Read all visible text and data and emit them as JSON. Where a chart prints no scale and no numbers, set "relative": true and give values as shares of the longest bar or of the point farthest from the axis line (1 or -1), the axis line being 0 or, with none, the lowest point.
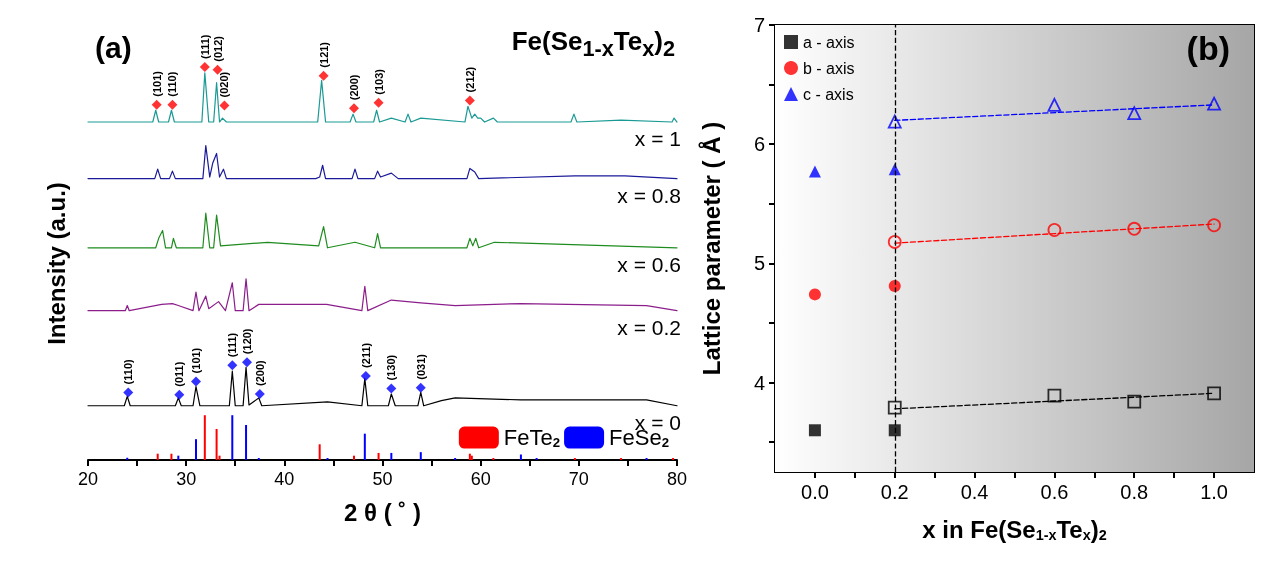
{
  "chart_data": [
    {
      "type": "line",
      "relative": true,
      "xlabel": "2 θ ( ˚ )",
      "ylabel": "Intensity (a.u.)",
      "xlim": [
        20,
        80
      ],
      "xticks": [
        20,
        {
          "value": 25,
          "label": null
        },
        30,
        {
          "value": 35,
          "label": null
        },
        40,
        {
          "value": 45,
          "label": null
        },
        50,
        {
          "value": 55,
          "label": null
        },
        60,
        {
          "value": 65,
          "label": null
        },
        70,
        {
          "value": 75,
          "label": null
        },
        80
      ],
      "legend": "bottom right",
      "line_style": "solid",
      "marker": "none",
      "annotations": [
        "(a)",
        "Fe(Se$_{1-x}$Te$_{x}$)$_{2}$",
        {
          "text": "(101)",
          "x": 27.0,
          "y": 0.904
        },
        {
          "text": "(110)",
          "x": 28.6,
          "y": 0.904
        },
        {
          "text": "(111)",
          "x": 31.9,
          "y": 1.0
        },
        {
          "text": "(012)",
          "x": 33.2,
          "y": 0.993
        },
        {
          "text": "(020)",
          "x": 33.9,
          "y": 0.902
        },
        {
          "text": "(121)",
          "x": 44.0,
          "y": 0.978
        },
        {
          "text": "(200)",
          "x": 47.1,
          "y": 0.895
        },
        {
          "text": "(103)",
          "x": 49.6,
          "y": 0.909
        },
        {
          "text": "(212)",
          "x": 58.9,
          "y": 0.915
        },
        {
          "text": "(110)",
          "x": 24.1,
          "y": 0.172
        },
        {
          "text": "(011)",
          "x": 29.3,
          "y": 0.166
        },
        {
          "text": "(101)",
          "x": 31.0,
          "y": 0.2
        },
        {
          "text": "(111)",
          "x": 34.7,
          "y": 0.241
        },
        {
          "text": "(120)",
          "x": 36.2,
          "y": 0.249
        },
        {
          "text": "(200)",
          "x": 37.5,
          "y": 0.168
        },
        {
          "text": "(211)",
          "x": 48.3,
          "y": 0.214
        },
        {
          "text": "(130)",
          "x": 50.9,
          "y": 0.182
        },
        {
          "text": "(031)",
          "x": 53.9,
          "y": 0.184
        }
      ],
      "series": [
        {
          "name": "x = 1",
          "color": "#1a9a94",
          "x": [
            20,
            26.6,
            26.9,
            27.2,
            28.2,
            28.5,
            28.8,
            31.6,
            31.9,
            32.3,
            32.8,
            33.1,
            33.4,
            33.7,
            34.1,
            43.4,
            43.8,
            44.2,
            46.7,
            47.0,
            47.3,
            49.1,
            49.4,
            49.7,
            50.9,
            52.3,
            52.6,
            52.9,
            53.9,
            58.4,
            58.7,
            59.1,
            59.4,
            59.7,
            60.0,
            60.4,
            61.3,
            61.7,
            69.2,
            69.5,
            69.8,
            74.3,
            79.5,
            79.7,
            80
          ],
          "values": [
            0.86,
            0.86,
            0.89,
            0.86,
            0.86,
            0.89,
            0.86,
            0.86,
            0.985,
            0.86,
            0.86,
            0.96,
            0.86,
            0.87,
            0.86,
            0.86,
            0.966,
            0.86,
            0.86,
            0.88,
            0.86,
            0.86,
            0.89,
            0.86,
            0.87,
            0.86,
            0.88,
            0.86,
            0.87,
            0.86,
            0.9,
            0.87,
            0.88,
            0.87,
            0.87,
            0.86,
            0.87,
            0.86,
            0.86,
            0.88,
            0.86,
            0.865,
            0.86,
            0.87,
            0.86
          ]
        },
        {
          "name": "x = 0.8",
          "color": "#1a1a9a",
          "x": [
            20,
            26.8,
            27.1,
            27.4,
            28.3,
            28.6,
            28.9,
            31.7,
            32.0,
            32.4,
            32.7,
            33.1,
            33.4,
            33.8,
            34.1,
            43.2,
            43.6,
            43.9,
            44.2,
            46.9,
            47.2,
            47.5,
            49.2,
            49.5,
            49.8,
            50.9,
            51.6,
            58.6,
            58.9,
            59.4,
            59.8,
            69.6,
            74.7,
            80
          ],
          "values": [
            0.716,
            0.716,
            0.74,
            0.716,
            0.716,
            0.735,
            0.716,
            0.716,
            0.8,
            0.72,
            0.755,
            0.78,
            0.72,
            0.74,
            0.716,
            0.716,
            0.72,
            0.75,
            0.716,
            0.716,
            0.74,
            0.716,
            0.716,
            0.735,
            0.72,
            0.73,
            0.716,
            0.716,
            0.742,
            0.733,
            0.716,
            0.723,
            0.723,
            0.716
          ]
        },
        {
          "name": "x = 0.6",
          "color": "#1e8c1e",
          "x": [
            20,
            26.9,
            27.2,
            27.6,
            27.9,
            28.5,
            28.7,
            29.0,
            31.7,
            32.0,
            32.4,
            32.8,
            33.1,
            33.5,
            38.3,
            43.5,
            44.0,
            44.4,
            47.2,
            49.2,
            49.5,
            49.8,
            58.6,
            58.9,
            59.2,
            59.5,
            59.8,
            61.4,
            80
          ],
          "values": [
            0.54,
            0.54,
            0.564,
            0.584,
            0.54,
            0.54,
            0.564,
            0.54,
            0.54,
            0.628,
            0.54,
            0.54,
            0.623,
            0.545,
            0.554,
            0.545,
            0.594,
            0.54,
            0.554,
            0.54,
            0.576,
            0.54,
            0.54,
            0.564,
            0.545,
            0.564,
            0.54,
            0.554,
            0.54
          ]
        },
        {
          "name": "x = 0.2",
          "color": "#8c1e8c",
          "x": [
            20,
            23.8,
            24.0,
            24.2,
            27.5,
            28.6,
            29.2,
            30.7,
            31.0,
            31.3,
            32.0,
            32.3,
            33.3,
            34.0,
            34.7,
            35.0,
            35.8,
            36.1,
            36.4,
            37.4,
            44.3,
            47.9,
            48.2,
            48.5,
            50.9,
            53.9,
            57.4,
            64.1,
            76.9,
            80
          ],
          "values": [
            0.38,
            0.38,
            0.393,
            0.38,
            0.396,
            0.398,
            0.393,
            0.38,
            0.427,
            0.38,
            0.417,
            0.385,
            0.403,
            0.38,
            0.451,
            0.38,
            0.38,
            0.461,
            0.38,
            0.396,
            0.396,
            0.38,
            0.442,
            0.38,
            0.407,
            0.4,
            0.393,
            0.398,
            0.393,
            0.38
          ]
        },
        {
          "name": "x = 0",
          "color": "#000000",
          "x": [
            20,
            23.7,
            24.0,
            24.3,
            28.9,
            29.2,
            29.5,
            30.7,
            31.0,
            31.4,
            34.4,
            34.7,
            35.0,
            35.8,
            36.1,
            36.4,
            37.4,
            37.7,
            44.4,
            47.9,
            48.2,
            48.5,
            50.6,
            50.9,
            51.3,
            53.6,
            53.9,
            54.2,
            56.0,
            57.4,
            64.1,
            76.9,
            80
          ],
          "values": [
            0.138,
            0.138,
            0.162,
            0.138,
            0.138,
            0.158,
            0.138,
            0.138,
            0.187,
            0.138,
            0.138,
            0.226,
            0.138,
            0.138,
            0.236,
            0.14,
            0.158,
            0.138,
            0.148,
            0.138,
            0.207,
            0.138,
            0.138,
            0.168,
            0.138,
            0.138,
            0.172,
            0.138,
            0.151,
            0.158,
            0.153,
            0.153,
            0.138
          ]
        },
        {
          "name": "FeTe$_{2}$",
          "type": "bar",
          "color": "#ff0000",
          "x": [
            27.1,
            28.5,
            31.9,
            33.1,
            33.4,
            43.6,
            47.1,
            49.6,
            50.9,
            53.9,
            58.9,
            59.1,
            61.3,
            69.6,
            74.3,
            79.6
          ],
          "values": [
            0.016,
            0.016,
            0.114,
            0.079,
            0.011,
            0.04,
            0.011,
            0.018,
            null,
            null,
            0.016,
            0.011,
            0.005,
            0.005,
            0.005,
            0.005
          ]
        },
        {
          "name": "FeSe$_{2}$",
          "type": "bar",
          "color": "#0000ff",
          "x": [
            24.0,
            29.2,
            31.0,
            34.7,
            36.1,
            37.4,
            44.4,
            48.2,
            50.9,
            53.9,
            57.4,
            64.1,
            65.7,
            76.9
          ],
          "values": [
            0.006,
            0.011,
            0.053,
            0.114,
            0.089,
            0.005,
            0.005,
            0.067,
            0.018,
            0.02,
            0.005,
            0.014,
            0.005,
            0.005
          ]
        },
        {
          "type": "scatter",
          "marker": "diamond",
          "color": "#ff0000",
          "x": [
            27.0,
            28.6,
            31.9,
            33.2,
            33.9,
            44.0,
            47.1,
            49.6,
            58.9
          ],
          "values": [
            0.904,
            0.904,
            1.0,
            0.993,
            0.902,
            0.978,
            0.895,
            0.909,
            0.915
          ]
        },
        {
          "type": "scatter",
          "marker": "diamond",
          "color": "#0000ff",
          "x": [
            24.1,
            29.3,
            31.0,
            34.7,
            36.2,
            37.5,
            48.3,
            50.9,
            53.9
          ],
          "values": [
            0.172,
            0.166,
            0.2,
            0.241,
            0.249,
            0.168,
            0.214,
            0.182,
            0.184
          ]
        }
      ]
    },
    {
      "type": "scatter",
      "xlabel": "x in Fe(Se$_{1-x}$Te$_{x}$)$_{2}$",
      "ylabel": "Lattice parameter ( Å )",
      "xlim": [
        -0.1,
        1.1
      ],
      "xticks": [
        {
          "value": 0,
          "label": "0.0"
        },
        {
          "value": 0.1,
          "label": null
        },
        0.2,
        {
          "value": 0.3,
          "label": null
        },
        0.4,
        {
          "value": 0.5,
          "label": null
        },
        0.6,
        {
          "value": 0.7,
          "label": null
        },
        0.8,
        {
          "value": 0.9,
          "label": null
        },
        {
          "value": 1,
          "label": "1.0"
        }
      ],
      "ylim": [
        3.25,
        7
      ],
      "yticks": [
        {
          "value": 3.5,
          "label": null
        },
        4,
        {
          "value": 4.5,
          "label": null
        },
        5,
        {
          "value": 5.5,
          "label": null
        },
        6,
        {
          "value": 6.5,
          "label": null
        },
        7
      ],
      "legend": "top left",
      "annotations": [
        "(b)"
      ],
      "ref_lines": [
        {
          "axis": "x",
          "value": 0.2,
          "color": "#000000",
          "line_style": "dashed"
        }
      ],
      "bands": [
        {
          "axis": "x",
          "from": -0.1,
          "to": 1.1,
          "color": "#a6a6a6"
        }
      ],
      "series": [
        {
          "name": "a - axis",
          "color": "#000000",
          "marker": "square",
          "x": [
            0,
            0.2
          ],
          "values": [
            3.6,
            3.6
          ]
        },
        {
          "name": "b - axis",
          "color": "#ff0000",
          "marker": "circle",
          "x": [
            0,
            0.2
          ],
          "values": [
            4.74,
            4.81
          ]
        },
        {
          "name": "c - axis",
          "color": "#0000ff",
          "marker": "triangle",
          "x": [
            0,
            0.2
          ],
          "values": [
            5.77,
            5.79
          ]
        },
        {
          "color": "#000000",
          "marker": "square",
          "x": [
            0.2,
            0.6,
            0.8,
            1.0
          ],
          "values": [
            3.79,
            3.89,
            3.84,
            3.91
          ]
        },
        {
          "color": "#ff0000",
          "marker": "circle",
          "x": [
            0.2,
            0.6,
            0.8,
            1.0
          ],
          "values": [
            5.18,
            5.28,
            5.29,
            5.32
          ]
        },
        {
          "color": "#0000ff",
          "marker": "triangle",
          "x": [
            0.2,
            0.6,
            0.8,
            1.0
          ],
          "values": [
            6.19,
            6.33,
            6.26,
            6.34
          ]
        },
        {
          "type": "line",
          "line_style": "dashed",
          "marker": "none",
          "color": "#000000",
          "x": [
            0.2,
            1.0
          ],
          "values": [
            3.78,
            3.91
          ]
        },
        {
          "type": "line",
          "line_style": "dashed",
          "marker": "none",
          "color": "#ff0000",
          "x": [
            0.2,
            1.0
          ],
          "values": [
            5.17,
            5.33
          ]
        },
        {
          "type": "line",
          "line_style": "dashed",
          "marker": "none",
          "color": "#0000ff",
          "x": [
            0.2,
            1.0
          ],
          "values": [
            6.2,
            6.33
          ]
        }
      ]
    }
  ]
}
